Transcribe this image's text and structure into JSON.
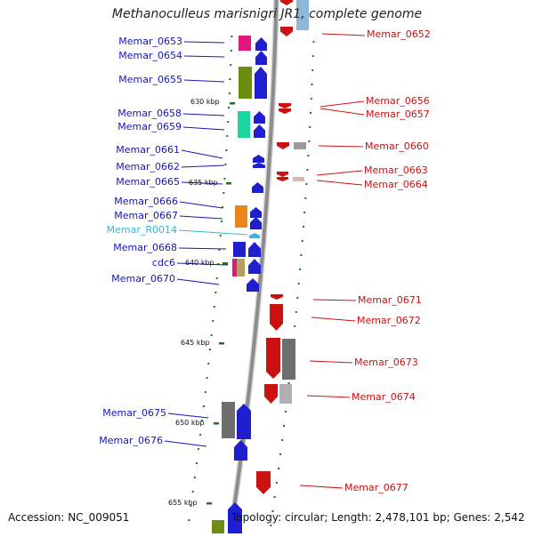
{
  "title": "Methanoculleus marisnigri JR1, complete genome",
  "footer": {
    "accession": "Accession: NC_009051",
    "topology": "Topology: circular; Length: 2,478,101 bp; Genes: 2,542"
  },
  "colors": {
    "forward": "#1f1fcf",
    "reverse": "#cc1111",
    "rna": "#3bb8d8",
    "scale": "#1a7a1a"
  },
  "scale_labels": [
    "630 kbp",
    "635 kbp",
    "640 kbp",
    "645 kbp",
    "650 kbp",
    "655 kbp"
  ],
  "genes_left": [
    {
      "name": "Memar_0653",
      "color": "#1616b8"
    },
    {
      "name": "Memar_0654",
      "color": "#1616b8"
    },
    {
      "name": "Memar_0655",
      "color": "#1616b8"
    },
    {
      "name": "Memar_0658",
      "color": "#1616b8"
    },
    {
      "name": "Memar_0659",
      "color": "#1616b8"
    },
    {
      "name": "Memar_0661",
      "color": "#1616b8"
    },
    {
      "name": "Memar_0662",
      "color": "#1616b8"
    },
    {
      "name": "Memar_0665",
      "color": "#1616b8"
    },
    {
      "name": "Memar_0666",
      "color": "#1616b8"
    },
    {
      "name": "Memar_0667",
      "color": "#1616b8"
    },
    {
      "name": "Memar_R0014",
      "color": "#36b6d4"
    },
    {
      "name": "Memar_0668",
      "color": "#1616b8"
    },
    {
      "name": "cdc6",
      "color": "#1616b8"
    },
    {
      "name": "Memar_0670",
      "color": "#1616b8"
    },
    {
      "name": "Memar_0675",
      "color": "#1616b8"
    },
    {
      "name": "Memar_0676",
      "color": "#1616b8"
    }
  ],
  "genes_right": [
    {
      "name": "Memar_0652",
      "color": "#cc1111"
    },
    {
      "name": "Memar_0656",
      "color": "#cc1111"
    },
    {
      "name": "Memar_0657",
      "color": "#cc1111"
    },
    {
      "name": "Memar_0660",
      "color": "#cc1111"
    },
    {
      "name": "Memar_0663",
      "color": "#cc1111"
    },
    {
      "name": "Memar_0664",
      "color": "#cc1111"
    },
    {
      "name": "Memar_0671",
      "color": "#cc1111"
    },
    {
      "name": "Memar_0672",
      "color": "#cc1111"
    },
    {
      "name": "Memar_0673",
      "color": "#cc1111"
    },
    {
      "name": "Memar_0674",
      "color": "#cc1111"
    },
    {
      "name": "Memar_0677",
      "color": "#cc1111"
    }
  ]
}
